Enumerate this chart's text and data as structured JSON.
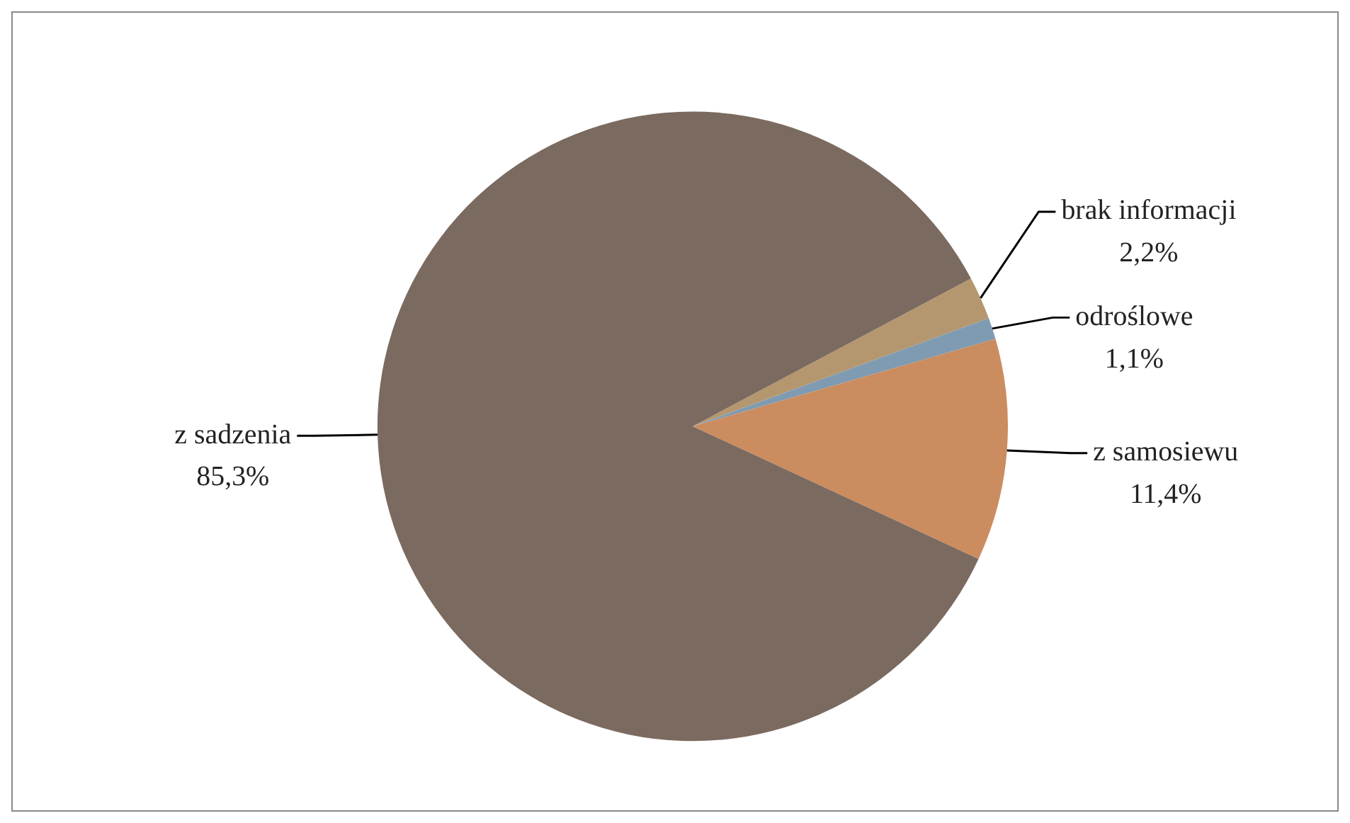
{
  "chart_data": {
    "type": "pie",
    "categories": [
      "brak informacji",
      "odroślowe",
      "z samosiewu",
      "z sadzenia"
    ],
    "values": [
      2.2,
      1.1,
      11.4,
      85.3
    ],
    "colors": [
      "#b5976f",
      "#7f9bb2",
      "#cb8c5f",
      "#7b6a5f"
    ],
    "value_labels": [
      "2,2%",
      "1,1%",
      "11,4%",
      "85,3%"
    ],
    "legend": false
  }
}
